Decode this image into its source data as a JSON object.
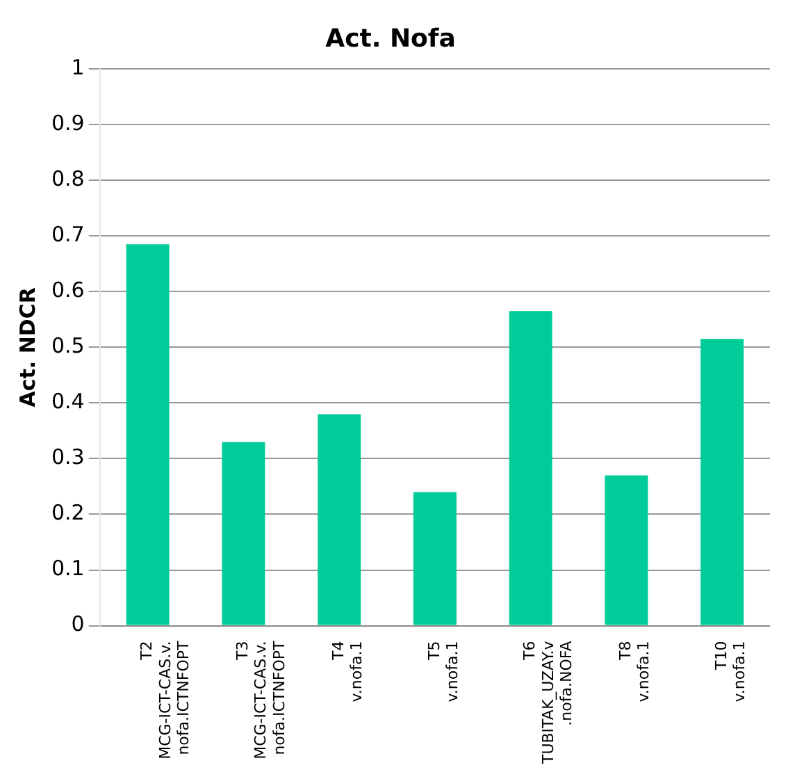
{
  "chart_data": {
    "type": "bar",
    "title": "Act. Nofa",
    "ylabel": "Act. NDCR",
    "categories": [
      "T2 MCG-ICT-CAS.v.nofa.ICTNFOPT",
      "T3 MCG-ICT-CAS.v.nofa.ICTNFOPT",
      "T4 v.nofa.1",
      "T5 v.nofa.1",
      "T6 TUBITAK_UZAY.v.nofa.NOFA",
      "T8 v.nofa.1",
      "T10 v.nofa.1"
    ],
    "values": [
      0.685,
      0.33,
      0.38,
      0.24,
      0.565,
      0.27,
      0.515
    ],
    "color": "#00cc99",
    "ylim": [
      0,
      1
    ],
    "yticks": [
      0,
      0.1,
      0.2,
      0.3,
      0.4,
      0.5,
      0.6,
      0.7,
      0.8,
      0.9,
      1
    ],
    "grid": "y",
    "legend": false
  }
}
